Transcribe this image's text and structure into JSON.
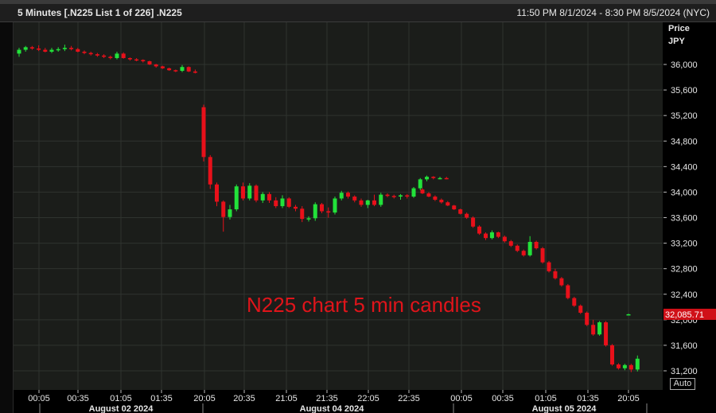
{
  "header": {
    "title": "5 Minutes [.N225 List 1 of 226] .N225",
    "range": "11:50 PM 8/1/2024 - 8:30 PM 8/5/2024 (NYC)"
  },
  "axis_title": {
    "line1": "Price",
    "line2": "JPY"
  },
  "auto_button": "Auto",
  "annotation": "N225 chart 5 min candles",
  "colors": {
    "up": "#22e23a",
    "down": "#e8101a",
    "background": "#1b1d1a",
    "grid": "#2f332f",
    "last_price_bg": "#d01018"
  },
  "chart_data": {
    "type": "candlestick",
    "title": "5 Minutes [.N225 List 1 of 226] .N225",
    "ylabel": "Price JPY",
    "ylim": [
      31000,
      36500
    ],
    "y_ticks": [
      "31,200",
      "31,600",
      "32,000",
      "32,400",
      "32,800",
      "33,200",
      "33,600",
      "34,000",
      "34,400",
      "34,800",
      "35,200",
      "35,600",
      "36,000"
    ],
    "x_ticks": [
      "00:05",
      "00:35",
      "01:05",
      "01:35",
      "20:05",
      "20:35",
      "21:05",
      "21:35",
      "22:05",
      "22:35",
      "00:05",
      "00:35",
      "01:05",
      "01:35",
      "20:05"
    ],
    "date_labels": [
      "August 02 2024",
      "August 04 2024",
      "August 05 2024"
    ],
    "last_price": "32,085.71",
    "candles": [
      {
        "o": 36170,
        "h": 36260,
        "l": 36120,
        "c": 36230
      },
      {
        "o": 36230,
        "h": 36290,
        "l": 36200,
        "c": 36270
      },
      {
        "o": 36270,
        "h": 36290,
        "l": 36230,
        "c": 36250
      },
      {
        "o": 36250,
        "h": 36300,
        "l": 36210,
        "c": 36230
      },
      {
        "o": 36230,
        "h": 36260,
        "l": 36190,
        "c": 36200
      },
      {
        "o": 36200,
        "h": 36260,
        "l": 36180,
        "c": 36230
      },
      {
        "o": 36230,
        "h": 36270,
        "l": 36200,
        "c": 36240
      },
      {
        "o": 36240,
        "h": 36310,
        "l": 36210,
        "c": 36260
      },
      {
        "o": 36260,
        "h": 36290,
        "l": 36220,
        "c": 36240
      },
      {
        "o": 36240,
        "h": 36260,
        "l": 36190,
        "c": 36200
      },
      {
        "o": 36200,
        "h": 36220,
        "l": 36160,
        "c": 36180
      },
      {
        "o": 36180,
        "h": 36200,
        "l": 36140,
        "c": 36160
      },
      {
        "o": 36160,
        "h": 36180,
        "l": 36120,
        "c": 36140
      },
      {
        "o": 36140,
        "h": 36160,
        "l": 36100,
        "c": 36120
      },
      {
        "o": 36120,
        "h": 36140,
        "l": 36080,
        "c": 36100
      },
      {
        "o": 36100,
        "h": 36200,
        "l": 36080,
        "c": 36170
      },
      {
        "o": 36170,
        "h": 36190,
        "l": 36090,
        "c": 36100
      },
      {
        "o": 36100,
        "h": 36110,
        "l": 36060,
        "c": 36080
      },
      {
        "o": 36080,
        "h": 36100,
        "l": 36050,
        "c": 36070
      },
      {
        "o": 36070,
        "h": 36080,
        "l": 36030,
        "c": 36050
      },
      {
        "o": 36050,
        "h": 36060,
        "l": 35990,
        "c": 36000
      },
      {
        "o": 36000,
        "h": 36010,
        "l": 35950,
        "c": 35970
      },
      {
        "o": 35970,
        "h": 35980,
        "l": 35930,
        "c": 35940
      },
      {
        "o": 35940,
        "h": 35950,
        "l": 35900,
        "c": 35910
      },
      {
        "o": 35910,
        "h": 35920,
        "l": 35880,
        "c": 35900
      },
      {
        "o": 35900,
        "h": 35990,
        "l": 35880,
        "c": 35960
      },
      {
        "o": 35960,
        "h": 35970,
        "l": 35880,
        "c": 35890
      },
      {
        "o": 35890,
        "h": 35920,
        "l": 35860,
        "c": 35870
      },
      {
        "o": 35330,
        "h": 35370,
        "l": 34480,
        "c": 34550
      },
      {
        "o": 34550,
        "h": 34580,
        "l": 34050,
        "c": 34120
      },
      {
        "o": 34120,
        "h": 34150,
        "l": 33780,
        "c": 33850
      },
      {
        "o": 33850,
        "h": 33870,
        "l": 33380,
        "c": 33610
      },
      {
        "o": 33610,
        "h": 33800,
        "l": 33570,
        "c": 33730
      },
      {
        "o": 33730,
        "h": 34120,
        "l": 33700,
        "c": 34090
      },
      {
        "o": 34090,
        "h": 34150,
        "l": 33870,
        "c": 33900
      },
      {
        "o": 33900,
        "h": 34140,
        "l": 33870,
        "c": 34100
      },
      {
        "o": 34100,
        "h": 34120,
        "l": 33840,
        "c": 33870
      },
      {
        "o": 33870,
        "h": 34000,
        "l": 33830,
        "c": 33970
      },
      {
        "o": 33970,
        "h": 34000,
        "l": 33830,
        "c": 33870
      },
      {
        "o": 33870,
        "h": 33920,
        "l": 33750,
        "c": 33780
      },
      {
        "o": 33780,
        "h": 33950,
        "l": 33750,
        "c": 33900
      },
      {
        "o": 33900,
        "h": 33920,
        "l": 33750,
        "c": 33770
      },
      {
        "o": 33770,
        "h": 33800,
        "l": 33700,
        "c": 33740
      },
      {
        "o": 33740,
        "h": 33780,
        "l": 33530,
        "c": 33580
      },
      {
        "o": 33580,
        "h": 33620,
        "l": 33540,
        "c": 33590
      },
      {
        "o": 33590,
        "h": 33840,
        "l": 33550,
        "c": 33810
      },
      {
        "o": 33810,
        "h": 33830,
        "l": 33670,
        "c": 33700
      },
      {
        "o": 33700,
        "h": 33760,
        "l": 33600,
        "c": 33680
      },
      {
        "o": 33680,
        "h": 33930,
        "l": 33650,
        "c": 33900
      },
      {
        "o": 33900,
        "h": 34020,
        "l": 33870,
        "c": 33990
      },
      {
        "o": 33990,
        "h": 34010,
        "l": 33900,
        "c": 33930
      },
      {
        "o": 33930,
        "h": 33950,
        "l": 33840,
        "c": 33870
      },
      {
        "o": 33870,
        "h": 33900,
        "l": 33770,
        "c": 33800
      },
      {
        "o": 33800,
        "h": 33880,
        "l": 33750,
        "c": 33870
      },
      {
        "o": 33870,
        "h": 33960,
        "l": 33780,
        "c": 33800
      },
      {
        "o": 33800,
        "h": 33990,
        "l": 33770,
        "c": 33960
      },
      {
        "o": 33960,
        "h": 33980,
        "l": 33920,
        "c": 33940
      },
      {
        "o": 33940,
        "h": 33960,
        "l": 33900,
        "c": 33930
      },
      {
        "o": 33930,
        "h": 33970,
        "l": 33880,
        "c": 33950
      },
      {
        "o": 33950,
        "h": 33970,
        "l": 33900,
        "c": 33930
      },
      {
        "o": 33930,
        "h": 34080,
        "l": 33910,
        "c": 34060
      },
      {
        "o": 34060,
        "h": 34220,
        "l": 34030,
        "c": 34200
      },
      {
        "o": 34200,
        "h": 34260,
        "l": 34170,
        "c": 34240
      },
      {
        "o": 34240,
        "h": 34250,
        "l": 34200,
        "c": 34220
      },
      {
        "o": 34220,
        "h": 34240,
        "l": 34200,
        "c": 34220
      },
      {
        "o": 34220,
        "h": 34240,
        "l": 34200,
        "c": 34210
      },
      {
        "o": 34040,
        "h": 34060,
        "l": 33970,
        "c": 33980
      },
      {
        "o": 33980,
        "h": 34000,
        "l": 33920,
        "c": 33930
      },
      {
        "o": 33930,
        "h": 33950,
        "l": 33860,
        "c": 33880
      },
      {
        "o": 33880,
        "h": 33900,
        "l": 33820,
        "c": 33840
      },
      {
        "o": 33840,
        "h": 33860,
        "l": 33780,
        "c": 33790
      },
      {
        "o": 33790,
        "h": 33800,
        "l": 33720,
        "c": 33730
      },
      {
        "o": 33730,
        "h": 33740,
        "l": 33650,
        "c": 33660
      },
      {
        "o": 33660,
        "h": 33680,
        "l": 33580,
        "c": 33600
      },
      {
        "o": 33600,
        "h": 33620,
        "l": 33440,
        "c": 33460
      },
      {
        "o": 33460,
        "h": 33480,
        "l": 33330,
        "c": 33350
      },
      {
        "o": 33350,
        "h": 33370,
        "l": 33250,
        "c": 33280
      },
      {
        "o": 33280,
        "h": 33400,
        "l": 33260,
        "c": 33370
      },
      {
        "o": 33370,
        "h": 33380,
        "l": 33280,
        "c": 33300
      },
      {
        "o": 33300,
        "h": 33320,
        "l": 33210,
        "c": 33230
      },
      {
        "o": 33230,
        "h": 33250,
        "l": 33140,
        "c": 33160
      },
      {
        "o": 33160,
        "h": 33180,
        "l": 33060,
        "c": 33080
      },
      {
        "o": 33080,
        "h": 33100,
        "l": 32990,
        "c": 33010
      },
      {
        "o": 33010,
        "h": 33310,
        "l": 32990,
        "c": 33220
      },
      {
        "o": 33220,
        "h": 33240,
        "l": 33100,
        "c": 33120
      },
      {
        "o": 33120,
        "h": 33140,
        "l": 32880,
        "c": 32900
      },
      {
        "o": 32900,
        "h": 32920,
        "l": 32740,
        "c": 32760
      },
      {
        "o": 32760,
        "h": 32800,
        "l": 32630,
        "c": 32650
      },
      {
        "o": 32650,
        "h": 32670,
        "l": 32520,
        "c": 32540
      },
      {
        "o": 32540,
        "h": 32560,
        "l": 32320,
        "c": 32340
      },
      {
        "o": 32340,
        "h": 32360,
        "l": 32200,
        "c": 32220
      },
      {
        "o": 32220,
        "h": 32240,
        "l": 32090,
        "c": 32110
      },
      {
        "o": 32110,
        "h": 32130,
        "l": 31900,
        "c": 31920
      },
      {
        "o": 31920,
        "h": 32000,
        "l": 31750,
        "c": 31770
      },
      {
        "o": 31770,
        "h": 31980,
        "l": 31750,
        "c": 31960
      },
      {
        "o": 31960,
        "h": 31980,
        "l": 31580,
        "c": 31600
      },
      {
        "o": 31600,
        "h": 31620,
        "l": 31280,
        "c": 31300
      },
      {
        "o": 31300,
        "h": 31320,
        "l": 31220,
        "c": 31240
      },
      {
        "o": 31240,
        "h": 31310,
        "l": 31210,
        "c": 31290
      },
      {
        "o": 31290,
        "h": 31310,
        "l": 31180,
        "c": 31220
      },
      {
        "o": 31220,
        "h": 31440,
        "l": 31190,
        "c": 31390
      },
      {
        "o": 32080,
        "h": 32095,
        "l": 32075,
        "c": 32086
      }
    ],
    "candle_x_index": [
      0,
      1,
      2,
      3,
      4,
      5,
      6,
      7,
      8,
      9,
      10,
      11,
      12,
      13,
      14,
      15,
      16,
      17,
      18,
      19,
      20,
      21,
      22,
      23,
      24,
      25,
      26,
      27,
      28,
      29,
      30,
      31,
      32,
      33,
      34,
      35,
      36,
      37,
      38,
      39,
      40,
      41,
      42,
      43,
      44,
      45,
      46,
      47,
      48,
      49,
      50,
      51,
      52,
      53,
      54,
      55,
      56,
      57,
      58,
      59,
      60,
      61,
      62,
      63,
      64,
      65,
      66,
      67,
      68,
      69,
      70,
      71,
      72,
      73,
      74,
      75,
      76,
      77,
      78,
      79,
      80,
      81,
      82,
      83,
      84,
      85,
      86,
      87,
      88,
      89,
      90,
      91,
      92,
      93,
      94,
      95,
      96,
      97,
      98,
      99,
      100,
      101
    ]
  }
}
